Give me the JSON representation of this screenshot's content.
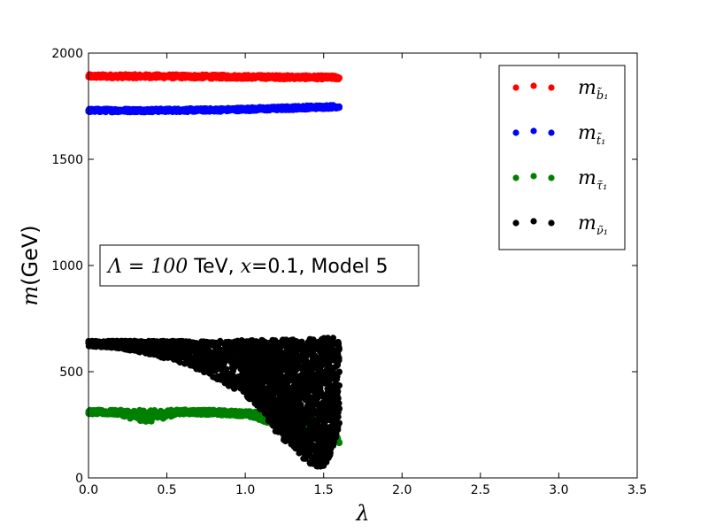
{
  "chart_data": {
    "type": "scatter",
    "title": "",
    "xlabel": "λ",
    "ylabel": {
      "symbol": "m",
      "unit": "(GeV)"
    },
    "xlim": [
      0.0,
      3.5
    ],
    "ylim": [
      0,
      2000
    ],
    "xticks": [
      "0.0",
      "0.5",
      "1.0",
      "1.5",
      "2.0",
      "2.5",
      "3.0",
      "3.5"
    ],
    "xtick_values": [
      0.0,
      0.5,
      1.0,
      1.5,
      2.0,
      2.5,
      3.0,
      3.5
    ],
    "yticks": [
      "0",
      "500",
      "1000",
      "1500",
      "2000"
    ],
    "ytick_values": [
      0,
      500,
      1000,
      1500,
      2000
    ],
    "grid": false,
    "legend_position": "top-right",
    "annotation": {
      "math": "Λ = 100",
      "text": " TeV, ",
      "x_sym": "x",
      "rest": "=0.1, Model 5"
    },
    "series": [
      {
        "name": "m",
        "sub": "b̃₁",
        "color": "#ff0000",
        "kind": "band",
        "x": [
          0.0,
          0.4,
          0.8,
          1.2,
          1.4,
          1.6
        ],
        "y_low": [
          1882,
          1882,
          1880,
          1878,
          1877,
          1876
        ],
        "y_high": [
          1900,
          1900,
          1898,
          1896,
          1895,
          1894
        ]
      },
      {
        "name": "m",
        "sub": "t̃₁",
        "color": "#0000ff",
        "kind": "band",
        "x": [
          0.0,
          0.4,
          0.8,
          1.2,
          1.4,
          1.6
        ],
        "y_low": [
          1722,
          1722,
          1724,
          1730,
          1735,
          1740
        ],
        "y_high": [
          1738,
          1738,
          1740,
          1748,
          1753,
          1757
        ]
      },
      {
        "name": "m",
        "sub": "τ̃₁",
        "color": "#008000",
        "kind": "band",
        "x": [
          0.0,
          0.2,
          0.3,
          0.4,
          0.5,
          0.6,
          0.8,
          1.0,
          1.1,
          1.3,
          1.5,
          1.6
        ],
        "y_low": [
          300,
          296,
          270,
          262,
          285,
          300,
          296,
          290,
          270,
          210,
          170,
          160
        ],
        "y_high": [
          320,
          320,
          320,
          318,
          320,
          322,
          320,
          315,
          310,
          300,
          290,
          180
        ]
      },
      {
        "name": "m",
        "sub": "ν̃₁",
        "color": "#000000",
        "kind": "band",
        "x": [
          0.0,
          0.2,
          0.4,
          0.6,
          0.8,
          1.0,
          1.1,
          1.2,
          1.3,
          1.4,
          1.5,
          1.55,
          1.6
        ],
        "y_low": [
          620,
          610,
          580,
          540,
          470,
          390,
          320,
          210,
          140,
          70,
          40,
          120,
          250
        ],
        "y_high": [
          645,
          645,
          645,
          645,
          645,
          648,
          650,
          650,
          652,
          655,
          658,
          660,
          660
        ]
      }
    ]
  }
}
